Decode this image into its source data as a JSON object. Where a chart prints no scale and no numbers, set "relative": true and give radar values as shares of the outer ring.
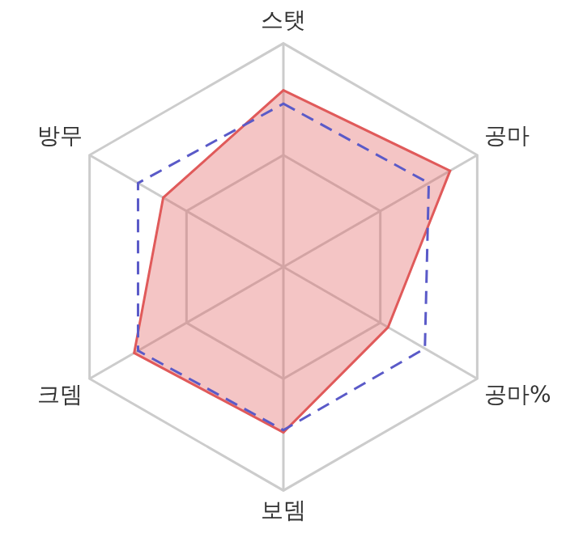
{
  "chart_data": {
    "type": "radar",
    "relative": true,
    "categories": [
      "스탯",
      "공마",
      "공마%",
      "보뎀",
      "크뎀",
      "방무"
    ],
    "series": [
      {
        "color": "#e05a5a",
        "values": [
          0.79,
          0.86,
          0.54,
          0.74,
          0.77,
          0.62
        ]
      },
      {
        "color": "#5a5ac8",
        "values": [
          0.73,
          0.75,
          0.73,
          0.73,
          0.75,
          0.75
        ],
        "line_style": "dashed"
      }
    ],
    "legend": false,
    "marker": "none"
  }
}
